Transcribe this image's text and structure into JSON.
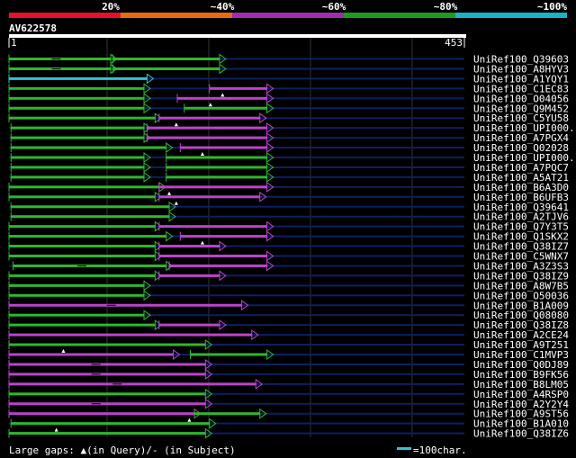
{
  "score_legend": [
    {
      "label": "20%",
      "color": "#e8102a"
    },
    {
      "label": "~40%",
      "color": "#e86a10"
    },
    {
      "label": "~60%",
      "color": "#9b2fae"
    },
    {
      "label": "~80%",
      "color": "#1f9a1f"
    },
    {
      "label": "~100%",
      "color": "#19b3c2"
    }
  ],
  "query": {
    "name": "AV622578",
    "start": "1",
    "end": "453",
    "length": 453
  },
  "hit_colors": {
    "green": "#2eb82e",
    "magenta": "#bb44cc",
    "cyan": "#2ec4d4",
    "line": "#0b1f66"
  },
  "hits": [
    {
      "name": "UniRef100_Q39603",
      "segs": [
        [
          "green",
          1,
          102,
          true
        ],
        [
          "green",
          104,
          210,
          false
        ]
      ],
      "gaps": []
    },
    {
      "name": "UniRef100_A8HYV3",
      "segs": [
        [
          "green",
          1,
          102,
          true
        ],
        [
          "green",
          104,
          210,
          false
        ]
      ],
      "gaps": []
    },
    {
      "name": "UniRef100_A1YQY1",
      "segs": [
        [
          "cyan",
          1,
          138,
          false
        ]
      ],
      "gaps": []
    },
    {
      "name": "UniRef100_C1EC83",
      "segs": [
        [
          "green",
          1,
          135,
          false
        ],
        [
          "magenta",
          200,
          257,
          false
        ]
      ],
      "gaps": [
        213
      ]
    },
    {
      "name": "UniRef100_O04056",
      "segs": [
        [
          "green",
          1,
          135,
          false
        ],
        [
          "magenta",
          168,
          257,
          false
        ]
      ],
      "gaps": [
        201
      ]
    },
    {
      "name": "UniRef100_Q9M452",
      "segs": [
        [
          "green",
          1,
          135,
          false
        ],
        [
          "green",
          175,
          257,
          false
        ]
      ],
      "gaps": []
    },
    {
      "name": "UniRef100_C5YU58",
      "segs": [
        [
          "green",
          1,
          146,
          false
        ],
        [
          "magenta",
          150,
          250,
          false
        ]
      ],
      "gaps": [
        167
      ]
    },
    {
      "name": "UniRef100_UPI000..",
      "segs": [
        [
          "green",
          3,
          135,
          false
        ],
        [
          "magenta",
          138,
          257,
          false
        ]
      ],
      "gaps": []
    },
    {
      "name": "UniRef100_A7PGX4",
      "segs": [
        [
          "green",
          3,
          135,
          false
        ],
        [
          "magenta",
          138,
          257,
          false
        ]
      ],
      "gaps": []
    },
    {
      "name": "UniRef100_Q02028",
      "segs": [
        [
          "green",
          3,
          157,
          false
        ],
        [
          "magenta",
          171,
          257,
          false
        ]
      ],
      "gaps": [
        193
      ]
    },
    {
      "name": "UniRef100_UPI000..",
      "segs": [
        [
          "green",
          3,
          135,
          false
        ],
        [
          "green",
          157,
          257,
          false
        ]
      ],
      "gaps": []
    },
    {
      "name": "UniRef100_A7PQC7",
      "segs": [
        [
          "green",
          3,
          135,
          false
        ],
        [
          "green",
          157,
          257,
          false
        ]
      ],
      "gaps": []
    },
    {
      "name": "UniRef100_A5AT21",
      "segs": [
        [
          "green",
          3,
          135,
          false
        ],
        [
          "green",
          157,
          257,
          false
        ]
      ],
      "gaps": []
    },
    {
      "name": "UniRef100_B6A3D0",
      "segs": [
        [
          "green",
          1,
          150,
          false
        ],
        [
          "magenta",
          150,
          257,
          false
        ]
      ],
      "gaps": [
        160
      ]
    },
    {
      "name": "UniRef100_B6UFB3",
      "segs": [
        [
          "green",
          1,
          146,
          false
        ],
        [
          "magenta",
          150,
          250,
          false
        ]
      ],
      "gaps": [
        167
      ]
    },
    {
      "name": "UniRef100_Q39641",
      "segs": [
        [
          "green",
          3,
          160,
          false
        ]
      ],
      "gaps": []
    },
    {
      "name": "UniRef100_A2TJV6",
      "segs": [
        [
          "green",
          3,
          160,
          false
        ]
      ],
      "gaps": []
    },
    {
      "name": "UniRef100_Q7Y3T5",
      "segs": [
        [
          "green",
          1,
          146,
          false
        ],
        [
          "magenta",
          150,
          257,
          false
        ]
      ],
      "gaps": []
    },
    {
      "name": "UniRef100_Q1SKX2",
      "segs": [
        [
          "green",
          1,
          157,
          false
        ],
        [
          "magenta",
          171,
          257,
          false
        ]
      ],
      "gaps": [
        193
      ]
    },
    {
      "name": "UniRef100_Q38IZ7",
      "segs": [
        [
          "green",
          1,
          146,
          false
        ],
        [
          "magenta",
          150,
          210,
          false
        ]
      ],
      "gaps": []
    },
    {
      "name": "UniRef100_C5WNX7",
      "segs": [
        [
          "green",
          1,
          146,
          false
        ],
        [
          "magenta",
          150,
          257,
          false
        ]
      ],
      "gaps": []
    },
    {
      "name": "UniRef100_A3Z3S3",
      "segs": [
        [
          "green",
          5,
          157,
          true
        ],
        [
          "magenta",
          160,
          257,
          false
        ]
      ],
      "gaps": []
    },
    {
      "name": "UniRef100_Q38IZ9",
      "segs": [
        [
          "green",
          1,
          146,
          false
        ],
        [
          "magenta",
          150,
          210,
          false
        ]
      ],
      "gaps": []
    },
    {
      "name": "UniRef100_A8W7B5",
      "segs": [
        [
          "green",
          1,
          135,
          false
        ]
      ],
      "gaps": []
    },
    {
      "name": "UniRef100_O50036",
      "segs": [
        [
          "green",
          1,
          135,
          false
        ]
      ],
      "gaps": []
    },
    {
      "name": "UniRef100_B1A009",
      "segs": [
        [
          "magenta",
          1,
          232,
          true
        ]
      ],
      "gaps": []
    },
    {
      "name": "UniRef100_Q08080",
      "segs": [
        [
          "green",
          1,
          135,
          false
        ]
      ],
      "gaps": []
    },
    {
      "name": "UniRef100_Q38IZ8",
      "segs": [
        [
          "green",
          1,
          146,
          false
        ],
        [
          "magenta",
          150,
          210,
          false
        ]
      ],
      "gaps": []
    },
    {
      "name": "UniRef100_A2CE24",
      "segs": [
        [
          "magenta",
          1,
          242,
          false
        ]
      ],
      "gaps": []
    },
    {
      "name": "UniRef100_A9T251",
      "segs": [
        [
          "green",
          1,
          196,
          false
        ]
      ],
      "gaps": [
        55
      ]
    },
    {
      "name": "UniRef100_C1MVP3",
      "segs": [
        [
          "magenta",
          1,
          164,
          false
        ],
        [
          "green",
          181,
          257,
          false
        ]
      ],
      "gaps": []
    },
    {
      "name": "UniRef100_Q0DJ89",
      "segs": [
        [
          "magenta",
          1,
          196,
          true
        ]
      ],
      "gaps": []
    },
    {
      "name": "UniRef100_B9FK56",
      "segs": [
        [
          "magenta",
          1,
          196,
          true
        ]
      ],
      "gaps": []
    },
    {
      "name": "UniRef100_B8LM05",
      "segs": [
        [
          "magenta",
          1,
          246,
          true
        ]
      ],
      "gaps": []
    },
    {
      "name": "UniRef100_A4RSP0",
      "segs": [
        [
          "green",
          1,
          196,
          false
        ]
      ],
      "gaps": []
    },
    {
      "name": "UniRef100_A2Y2Y4",
      "segs": [
        [
          "magenta",
          1,
          196,
          true
        ]
      ],
      "gaps": []
    },
    {
      "name": "UniRef100_A9ST56",
      "segs": [
        [
          "magenta",
          1,
          185,
          false
        ],
        [
          "green",
          185,
          250,
          false
        ]
      ],
      "gaps": [
        180
      ]
    },
    {
      "name": "UniRef100_B1A010",
      "segs": [
        [
          "green",
          3,
          200,
          false
        ]
      ],
      "gaps": [
        48
      ]
    },
    {
      "name": "UniRef100_Q38IZ6",
      "segs": [
        [
          "green",
          1,
          196,
          false
        ]
      ],
      "gaps": []
    }
  ],
  "footer": {
    "large_gaps": "Large gaps: ▲(in Query)/- (in Subject)",
    "scale": "=100char."
  }
}
